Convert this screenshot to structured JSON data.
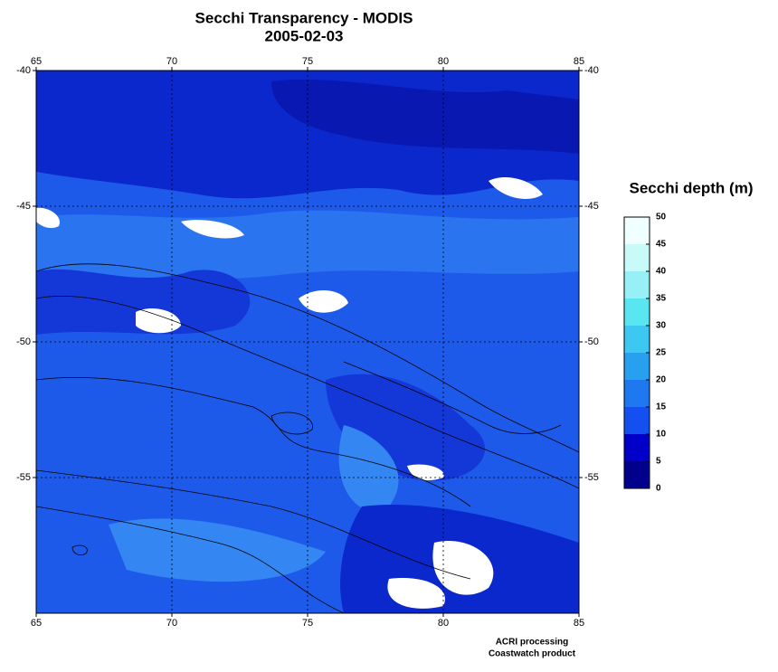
{
  "title": "Secchi Transparency - MODIS",
  "subtitle": "2005-02-03",
  "map": {
    "xlim": [
      65,
      85
    ],
    "ylim": [
      -60,
      -40
    ],
    "xticks": [
      65,
      70,
      75,
      80,
      85
    ],
    "yticks": [
      -40,
      -45,
      -50,
      -55
    ],
    "grid": true
  },
  "colorbar": {
    "title": "Secchi depth (m)",
    "lim": [
      0,
      50
    ],
    "ticks": [
      0,
      5,
      10,
      15,
      20,
      25,
      30,
      35,
      40,
      45,
      50
    ],
    "colors": [
      "#00008c",
      "#0000c8",
      "#1450f0",
      "#1e78f0",
      "#28a0f0",
      "#3cc8f0",
      "#5ae6f0",
      "#96f0f5",
      "#c8fafa",
      "#f0ffff"
    ]
  },
  "footer": [
    "ACRI processing",
    "Coastwatch product"
  ]
}
